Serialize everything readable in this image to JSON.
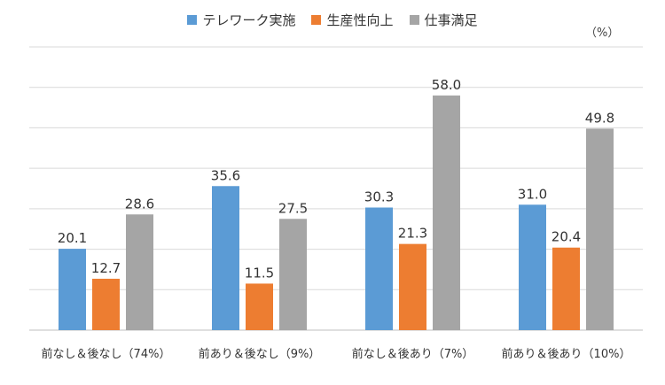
{
  "chart_data": {
    "type": "bar",
    "unit": "（%）",
    "categories": [
      "前なし＆後なし（74%）",
      "前あり＆後なし（9%）",
      "前なし＆後あり（7%）",
      "前あり＆後あり（10%）"
    ],
    "series": [
      {
        "name": "テレワーク実施",
        "color": "#5b9bd5",
        "values": [
          20.1,
          35.6,
          30.3,
          31.0
        ]
      },
      {
        "name": "生産性向上",
        "color": "#ed7d31",
        "values": [
          12.7,
          11.5,
          21.3,
          20.4
        ]
      },
      {
        "name": "仕事満足",
        "color": "#a5a5a5",
        "values": [
          28.6,
          27.5,
          58.0,
          49.8
        ]
      }
    ],
    "ylim": [
      0,
      70
    ],
    "gridlines": true,
    "legend_position": "top"
  }
}
